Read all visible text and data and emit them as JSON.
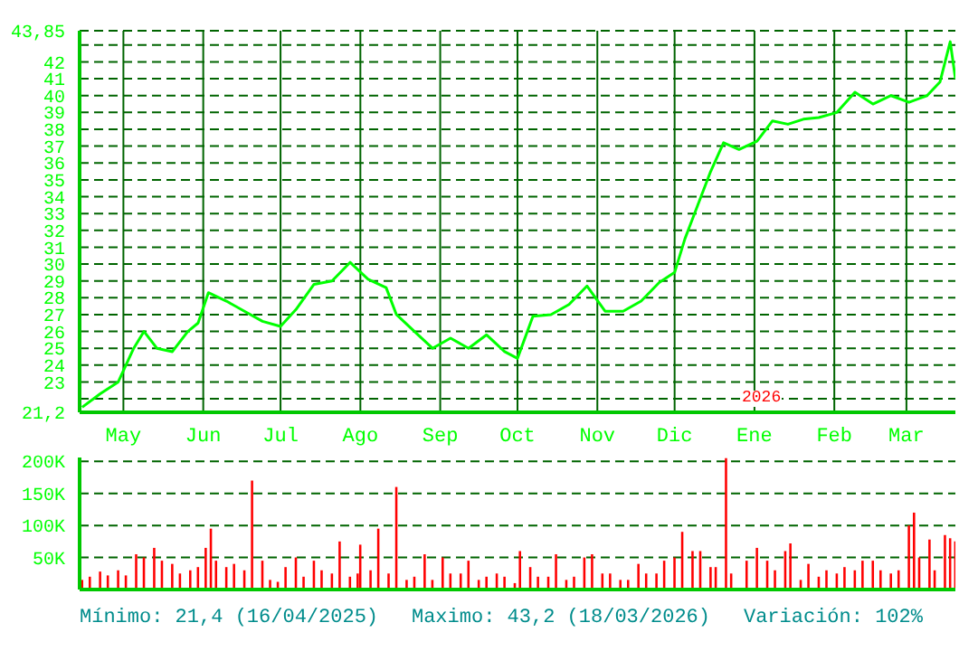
{
  "chart_data": [
    {
      "type": "line",
      "x": [
        "2025-04-15",
        "2025-04-22",
        "2025-04-29",
        "2025-05-05",
        "2025-05-09",
        "2025-05-14",
        "2025-05-20",
        "2025-05-26",
        "2025-05-30",
        "2025-06-03",
        "2025-06-10",
        "2025-06-17",
        "2025-06-24",
        "2025-07-01",
        "2025-07-07",
        "2025-07-14",
        "2025-07-21",
        "2025-07-28",
        "2025-08-04",
        "2025-08-11",
        "2025-08-15",
        "2025-08-22",
        "2025-08-29",
        "2025-09-05",
        "2025-09-12",
        "2025-09-19",
        "2025-09-26",
        "2025-10-01",
        "2025-10-07",
        "2025-10-14",
        "2025-10-21",
        "2025-10-28",
        "2025-11-04",
        "2025-11-11",
        "2025-11-18",
        "2025-11-25",
        "2025-12-01",
        "2025-12-05",
        "2025-12-10",
        "2025-12-15",
        "2025-12-20",
        "2025-12-26",
        "2026-01-02",
        "2026-01-08",
        "2026-01-14",
        "2026-01-20",
        "2026-01-26",
        "2026-02-02",
        "2026-02-09",
        "2026-02-16",
        "2026-02-23",
        "2026-03-02",
        "2026-03-09",
        "2026-03-14",
        "2026-03-18",
        "2026-03-20"
      ],
      "series": [
        {
          "color": "#00ff00",
          "values": [
            21.5,
            22.3,
            23,
            25,
            26,
            25,
            24.8,
            26,
            26.5,
            28.3,
            27.8,
            27.2,
            26.6,
            26.3,
            27.3,
            28.8,
            29,
            30.1,
            29.1,
            28.6,
            27,
            26,
            25,
            25.6,
            25,
            25.8,
            24.8,
            24.4,
            26.9,
            27,
            27.6,
            28.7,
            27.2,
            27.2,
            27.8,
            28.9,
            29.5,
            31.5,
            33.5,
            35.5,
            37.2,
            36.8,
            37.3,
            38.5,
            38.3,
            38.6,
            38.7,
            39,
            40.2,
            39.5,
            40,
            39.6,
            40,
            40.8,
            43.2,
            41
          ]
        }
      ],
      "xlim": [
        "2025-04-14",
        "2026-03-20"
      ],
      "xticks": [
        {
          "value": "2025-05-01",
          "label": "May"
        },
        {
          "value": "2025-06-01",
          "label": "Jun"
        },
        {
          "value": "2025-07-01",
          "label": "Jul"
        },
        {
          "value": "2025-08-01",
          "label": "Ago"
        },
        {
          "value": "2025-09-01",
          "label": "Sep"
        },
        {
          "value": "2025-10-01",
          "label": "Oct"
        },
        {
          "value": "2025-11-01",
          "label": "Nov"
        },
        {
          "value": "2025-12-01",
          "label": "Dic"
        },
        {
          "value": "2026-01-01",
          "label": "Ene"
        },
        {
          "value": "2026-02-01",
          "label": "Feb"
        },
        {
          "value": "2026-03-01",
          "label": "Mar"
        }
      ],
      "ylim": [
        21.2,
        43.85
      ],
      "yticks": [
        {
          "value": 21.2,
          "label": "21,2"
        },
        {
          "value": 22,
          "label": null
        },
        23,
        24,
        25,
        26,
        27,
        28,
        29,
        30,
        31,
        32,
        33,
        34,
        35,
        36,
        37,
        38,
        39,
        40,
        41,
        42,
        {
          "value": 43,
          "label": null
        },
        {
          "value": 43.85,
          "label": "43,85"
        }
      ],
      "grid": true,
      "annotations": [
        "2026"
      ]
    },
    {
      "type": "bar",
      "x": [
        "2025-04-15",
        "2025-04-18",
        "2025-04-22",
        "2025-04-25",
        "2025-04-29",
        "2025-05-02",
        "2025-05-06",
        "2025-05-09",
        "2025-05-13",
        "2025-05-16",
        "2025-05-20",
        "2025-05-23",
        "2025-05-27",
        "2025-05-30",
        "2025-06-02",
        "2025-06-04",
        "2025-06-06",
        "2025-06-10",
        "2025-06-13",
        "2025-06-17",
        "2025-06-20",
        "2025-06-24",
        "2025-06-27",
        "2025-06-30",
        "2025-07-03",
        "2025-07-07",
        "2025-07-10",
        "2025-07-14",
        "2025-07-17",
        "2025-07-21",
        "2025-07-24",
        "2025-07-28",
        "2025-07-31",
        "2025-08-01",
        "2025-08-05",
        "2025-08-08",
        "2025-08-12",
        "2025-08-15",
        "2025-08-19",
        "2025-08-22",
        "2025-08-26",
        "2025-08-29",
        "2025-09-02",
        "2025-09-05",
        "2025-09-09",
        "2025-09-12",
        "2025-09-16",
        "2025-09-19",
        "2025-09-23",
        "2025-09-26",
        "2025-09-30",
        "2025-10-02",
        "2025-10-06",
        "2025-10-09",
        "2025-10-13",
        "2025-10-16",
        "2025-10-20",
        "2025-10-23",
        "2025-10-27",
        "2025-10-30",
        "2025-11-03",
        "2025-11-06",
        "2025-11-10",
        "2025-11-13",
        "2025-11-17",
        "2025-11-20",
        "2025-11-24",
        "2025-11-27",
        "2025-12-01",
        "2025-12-04",
        "2025-12-08",
        "2025-12-11",
        "2025-12-15",
        "2025-12-17",
        "2025-12-21",
        "2025-12-23",
        "2025-12-29",
        "2026-01-02",
        "2026-01-06",
        "2026-01-09",
        "2026-01-13",
        "2026-01-15",
        "2026-01-19",
        "2026-01-22",
        "2026-01-26",
        "2026-01-29",
        "2026-02-02",
        "2026-02-05",
        "2026-02-09",
        "2026-02-12",
        "2026-02-16",
        "2026-02-19",
        "2026-02-23",
        "2026-02-26",
        "2026-03-02",
        "2026-03-04",
        "2026-03-06",
        "2026-03-10",
        "2026-03-12",
        "2026-03-16",
        "2026-03-18",
        "2026-03-20"
      ],
      "series": [
        {
          "color": "#ff0000",
          "values": [
            15000,
            20000,
            28000,
            22000,
            30000,
            22000,
            55000,
            50000,
            65000,
            45000,
            40000,
            25000,
            30000,
            35000,
            65000,
            95000,
            45000,
            35000,
            40000,
            30000,
            170000,
            45000,
            15000,
            12000,
            35000,
            50000,
            20000,
            45000,
            30000,
            25000,
            75000,
            20000,
            25000,
            70000,
            30000,
            95000,
            25000,
            160000,
            15000,
            20000,
            55000,
            15000,
            50000,
            25000,
            25000,
            45000,
            15000,
            20000,
            25000,
            20000,
            10000,
            60000,
            35000,
            20000,
            20000,
            55000,
            15000,
            20000,
            50000,
            55000,
            25000,
            25000,
            15000,
            15000,
            40000,
            25000,
            25000,
            45000,
            50000,
            90000,
            60000,
            60000,
            35000,
            35000,
            205000,
            25000,
            45000,
            65000,
            45000,
            30000,
            60000,
            72000,
            15000,
            40000,
            20000,
            30000,
            25000,
            35000,
            30000,
            45000,
            45000,
            30000,
            25000,
            30000,
            100000,
            120000,
            50000,
            78000,
            30000,
            85000,
            80000,
            75000
          ]
        }
      ],
      "xlim": [
        "2025-04-14",
        "2026-03-20"
      ],
      "xticks": [
        {
          "value": "2025-05-01",
          "label": null
        },
        {
          "value": "2025-06-01",
          "label": null
        },
        {
          "value": "2025-07-01",
          "label": null
        },
        {
          "value": "2025-08-01",
          "label": null
        },
        {
          "value": "2025-09-01",
          "label": null
        },
        {
          "value": "2025-10-01",
          "label": null
        },
        {
          "value": "2025-11-01",
          "label": null
        },
        {
          "value": "2025-12-01",
          "label": null
        },
        {
          "value": "2026-01-01",
          "label": null
        },
        {
          "value": "2026-02-01",
          "label": null
        },
        {
          "value": "2026-03-01",
          "label": null
        }
      ],
      "ylim": [
        0,
        206000
      ],
      "yticks": [
        {
          "value": 50000,
          "label": "50K"
        },
        {
          "value": 100000,
          "label": "100K"
        },
        {
          "value": 150000,
          "label": "150K"
        },
        {
          "value": 200000,
          "label": "200K"
        }
      ],
      "grid": true,
      "tick_labels": "y",
      "annotations": [
        "Mínimo: 21,4 (16/04/2025)",
        "Maximo: 43,2 (18/03/2026)",
        "Variación: 102%"
      ]
    }
  ]
}
